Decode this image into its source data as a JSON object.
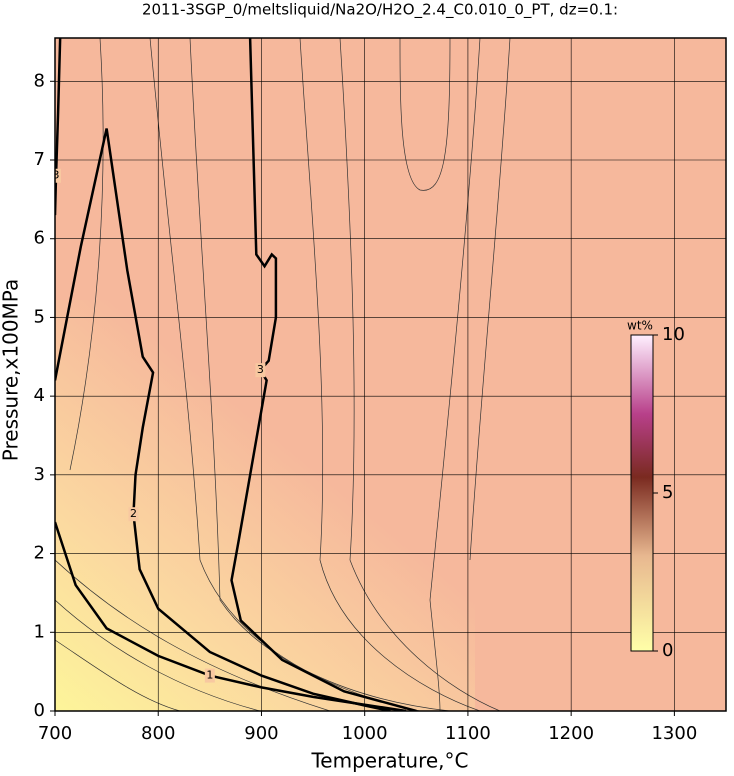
{
  "chart_data": {
    "type": "contour",
    "title": "2011-3SGP_0/meltsliquid/Na2O/H2O_2.4_C0.010_0_PT, dz=0.1:",
    "x_label": "Temperature,°C",
    "y_label": "Pressure,x100MPa",
    "xlim": [
      700,
      1350
    ],
    "ylim": [
      0,
      8.55
    ],
    "xticks": [
      700,
      800,
      900,
      1000,
      1100,
      1200,
      1300
    ],
    "yticks": [
      0,
      1,
      2,
      3,
      4,
      5,
      6,
      7,
      8
    ],
    "grid": true,
    "colorbar": {
      "label": "wt%",
      "lim": [
        0,
        10
      ],
      "ticks": [
        0,
        5,
        10
      ]
    },
    "series": [
      {
        "name": "1",
        "color": "#000000",
        "x": [
          700,
          720,
          750,
          800,
          850,
          900,
          950,
          1000,
          1040
        ],
        "values": [
          2.4,
          1.6,
          1.05,
          0.7,
          0.45,
          0.3,
          0.18,
          0.08,
          0
        ]
      },
      {
        "name": "2",
        "color": "#000000",
        "x": [
          700,
          725,
          750,
          770,
          785,
          795,
          785,
          778,
          776,
          782,
          800,
          850,
          900,
          950,
          1000,
          1025
        ],
        "values": [
          4.2,
          5.9,
          7.4,
          5.6,
          4.5,
          4.3,
          3.6,
          3.0,
          2.5,
          1.8,
          1.3,
          0.75,
          0.45,
          0.22,
          0.07,
          0
        ]
      },
      {
        "name": "3",
        "color": "#000000",
        "x": [
          889,
          895,
          903,
          910,
          914,
          914,
          907,
          899,
          905,
          878,
          871,
          880,
          920,
          980,
          1050
        ],
        "values": [
          8.55,
          5.8,
          5.65,
          5.8,
          5.75,
          5.0,
          4.45,
          4.33,
          4.2,
          2.17,
          1.66,
          1.15,
          0.65,
          0.25,
          0
        ]
      },
      {
        "name": "3",
        "color": "#000000",
        "x": [
          705,
          703,
          701,
          700
        ],
        "values": [
          8.55,
          7.6,
          6.8,
          6.3
        ]
      }
    ]
  }
}
